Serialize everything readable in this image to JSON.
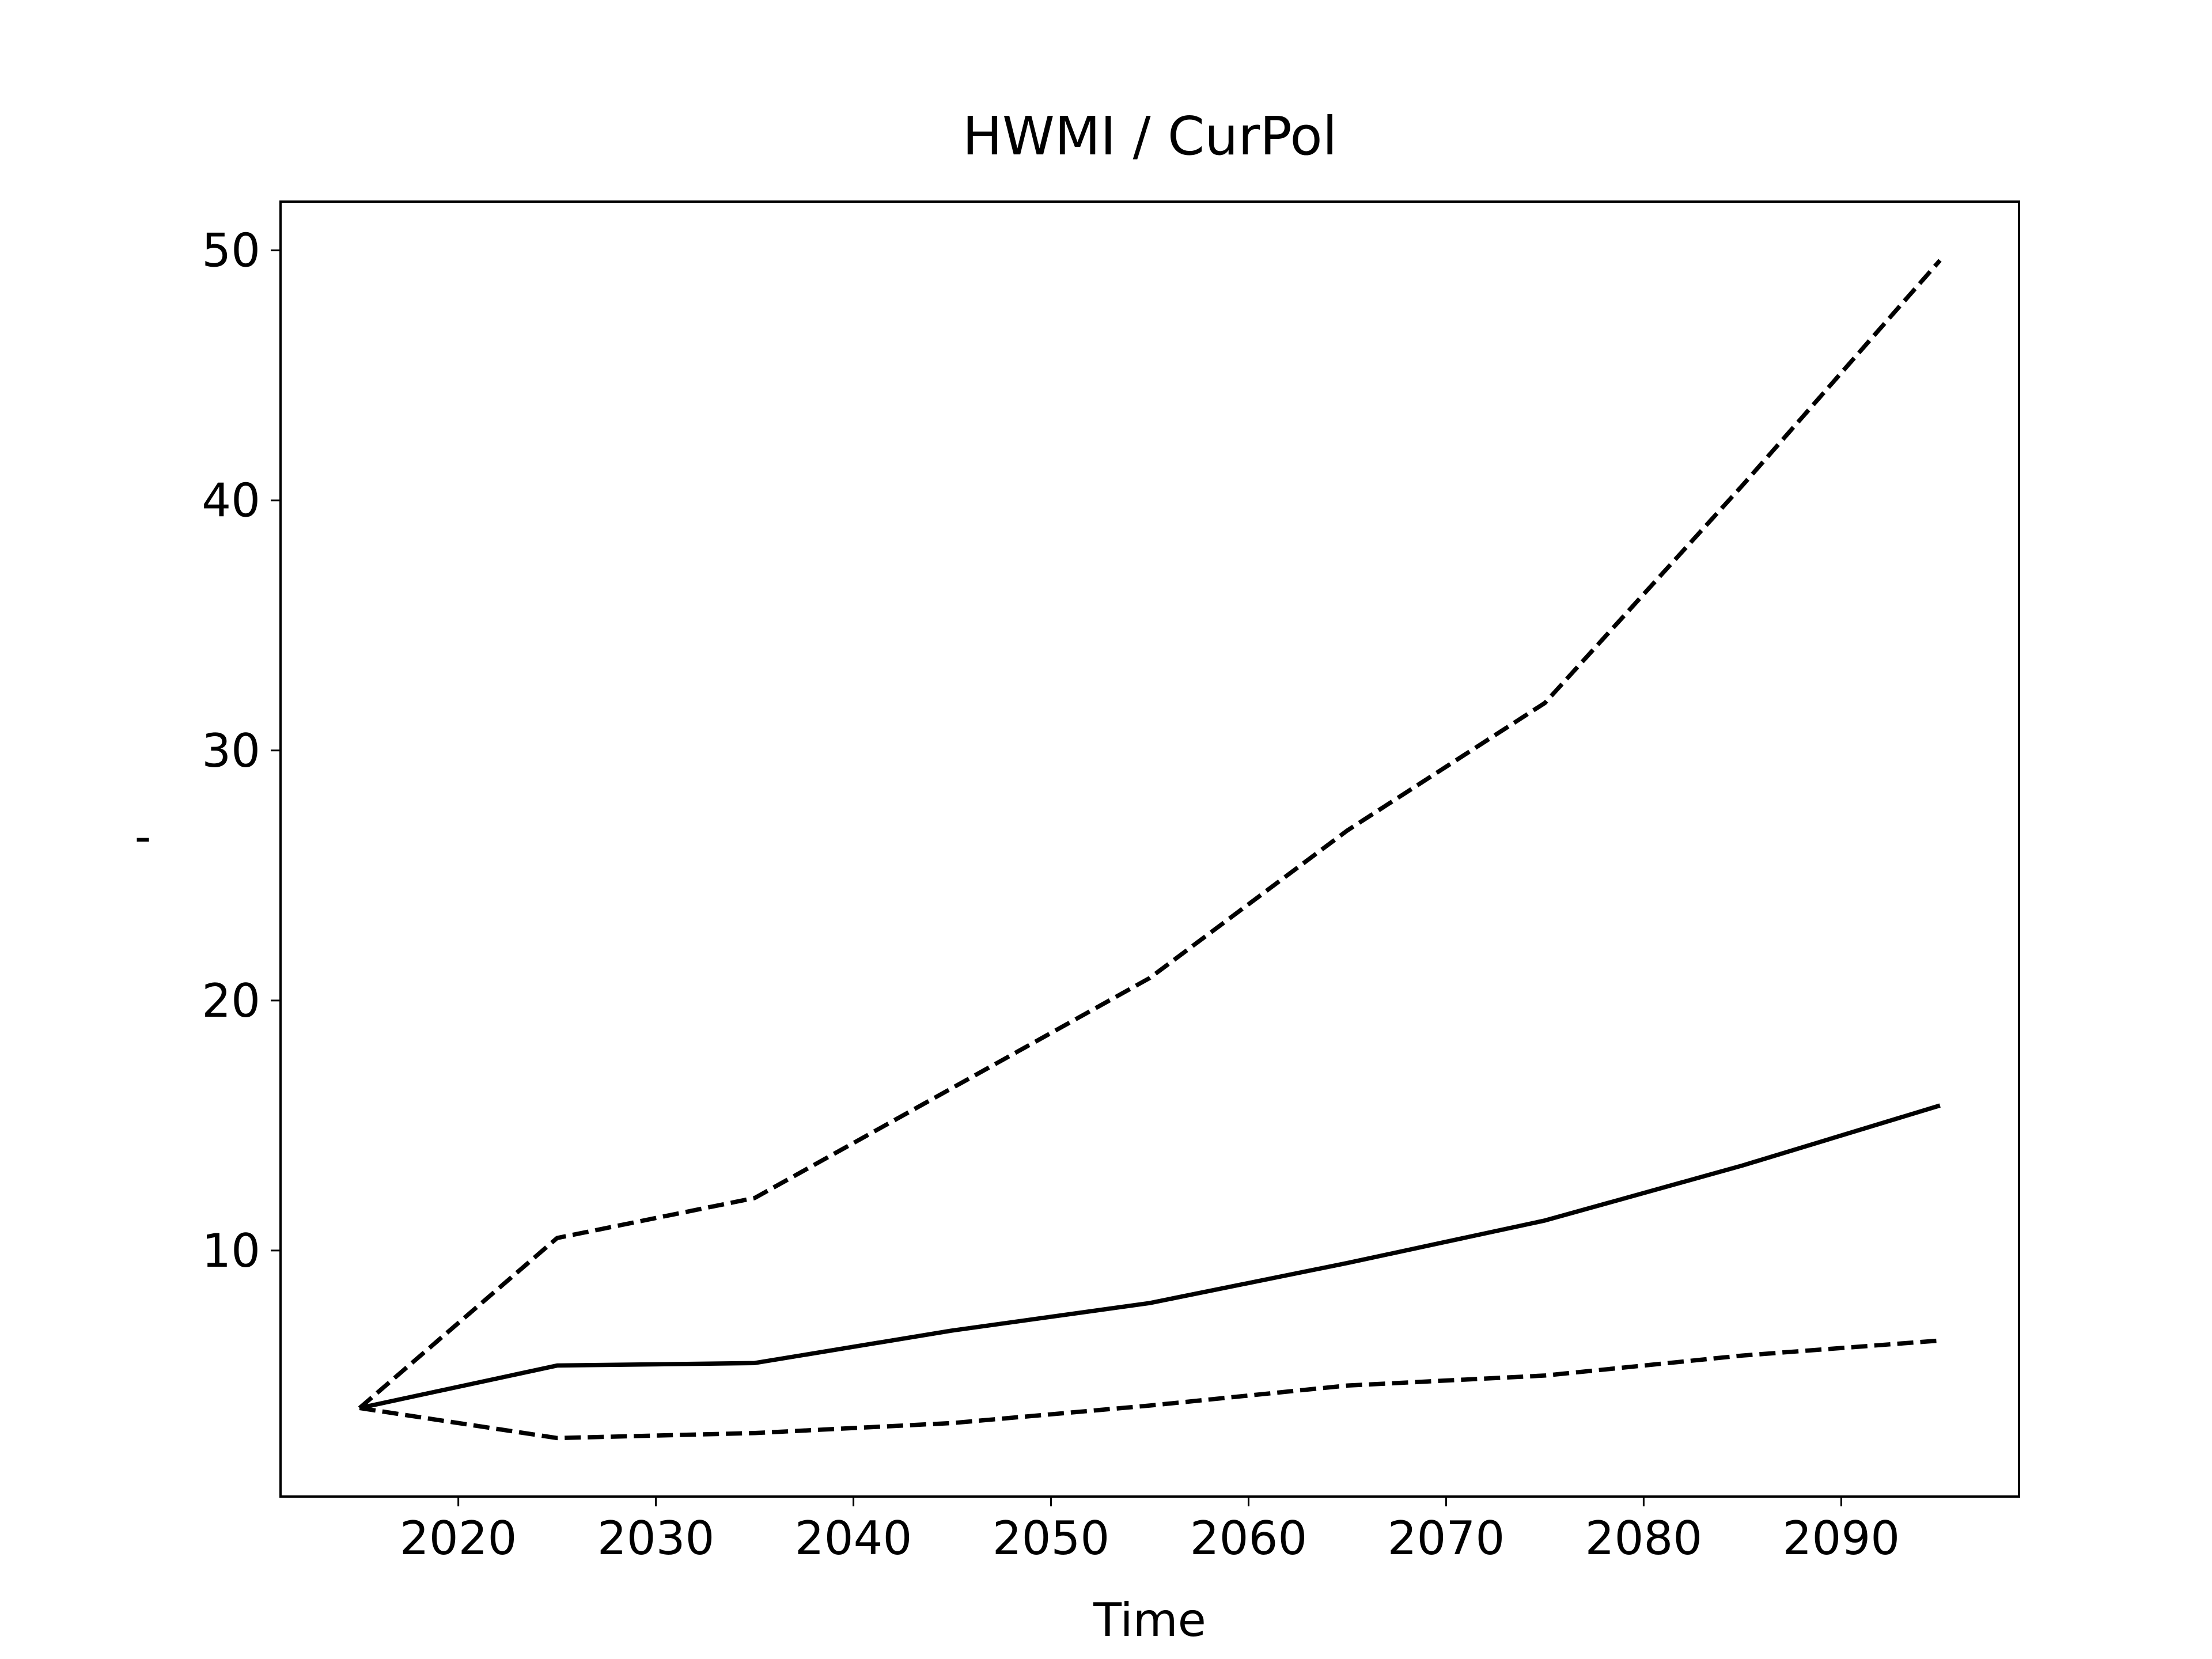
{
  "chart_data": {
    "type": "line",
    "title": "HWMI / CurPol",
    "xlabel": "Time",
    "ylabel": "-",
    "x": [
      2015,
      2025,
      2035,
      2045,
      2055,
      2065,
      2075,
      2085,
      2095
    ],
    "series": [
      {
        "color": "#000000",
        "linestyle": "solid",
        "values": [
          3.7,
          5.4,
          5.5,
          6.8,
          7.9,
          9.5,
          11.2,
          13.4,
          15.8
        ]
      },
      {
        "color": "#000000",
        "linestyle": "dashed",
        "values": [
          3.7,
          10.5,
          12.1,
          16.5,
          20.9,
          26.8,
          31.9,
          40.6,
          49.6
        ]
      },
      {
        "color": "#000000",
        "linestyle": "dashed",
        "values": [
          3.7,
          2.5,
          2.7,
          3.1,
          3.8,
          4.6,
          5.0,
          5.8,
          6.4
        ]
      }
    ],
    "xlim": [
      2011,
      2099
    ],
    "xticks": [
      2020,
      2030,
      2040,
      2050,
      2060,
      2070,
      2080,
      2090
    ],
    "ylim": [
      0.16,
      51.95
    ],
    "yticks": [
      10,
      20,
      30,
      40,
      50
    ],
    "grid": false
  }
}
